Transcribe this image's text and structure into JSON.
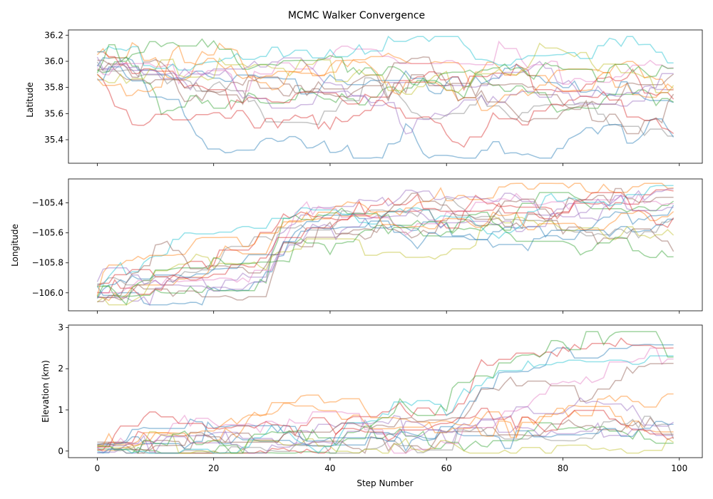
{
  "chart_data": {
    "type": "line",
    "title": "MCMC Walker Convergence",
    "xlabel": "Step Number",
    "x_ticks": [
      0,
      20,
      40,
      60,
      80,
      100
    ],
    "xlim": [
      -4.95,
      103.95
    ],
    "n_walkers": 16,
    "n_steps": 100,
    "line_alpha": 0.45,
    "colors": [
      "#1f77b4",
      "#ff7f0e",
      "#2ca02c",
      "#d62728",
      "#9467bd",
      "#8c564b",
      "#e377c2",
      "#7f7f7f",
      "#bcbd22",
      "#17becf"
    ],
    "panels": [
      {
        "ylabel": "Latitude",
        "ylim": [
          35.22,
          36.24
        ],
        "y_ticks": [
          35.4,
          35.6,
          35.8,
          36.0,
          36.2
        ],
        "y_tick_labels": [
          "35.4",
          "35.6",
          "35.8",
          "36.0",
          "36.2"
        ],
        "start": [
          35.85,
          36.08
        ],
        "target_mean": 35.8,
        "target_sd": 0.14,
        "step_sd": 0.055,
        "hold_prob": 0.45,
        "burn_in": 4,
        "clip": [
          35.26,
          36.19
        ]
      },
      {
        "ylabel": "Longitude",
        "ylim": [
          -106.12,
          -105.24
        ],
        "y_ticks": [
          -106.0,
          -105.8,
          -105.6,
          -105.4
        ],
        "y_tick_labels": [
          "−106.0",
          "−105.8",
          "−105.6",
          "−105.4"
        ],
        "start": [
          -106.08,
          -105.92
        ],
        "target_mean": -105.5,
        "target_sd": 0.09,
        "step_sd": 0.04,
        "hold_prob": 0.45,
        "burn_in": 30,
        "clip": [
          -106.08,
          -105.27
        ]
      },
      {
        "ylabel": "Elevation (km)",
        "ylim": [
          -0.16,
          3.06
        ],
        "y_ticks": [
          0,
          1,
          2,
          3
        ],
        "y_tick_labels": [
          "0",
          "1",
          "2",
          "3"
        ],
        "start": [
          -0.05,
          0.22
        ],
        "target_mean": 0.5,
        "target_sd": 0.25,
        "step_sd": 0.16,
        "hold_prob": 0.5,
        "burn_in": 45,
        "clip": [
          -0.05,
          2.9
        ],
        "late_excursion": true
      }
    ]
  }
}
